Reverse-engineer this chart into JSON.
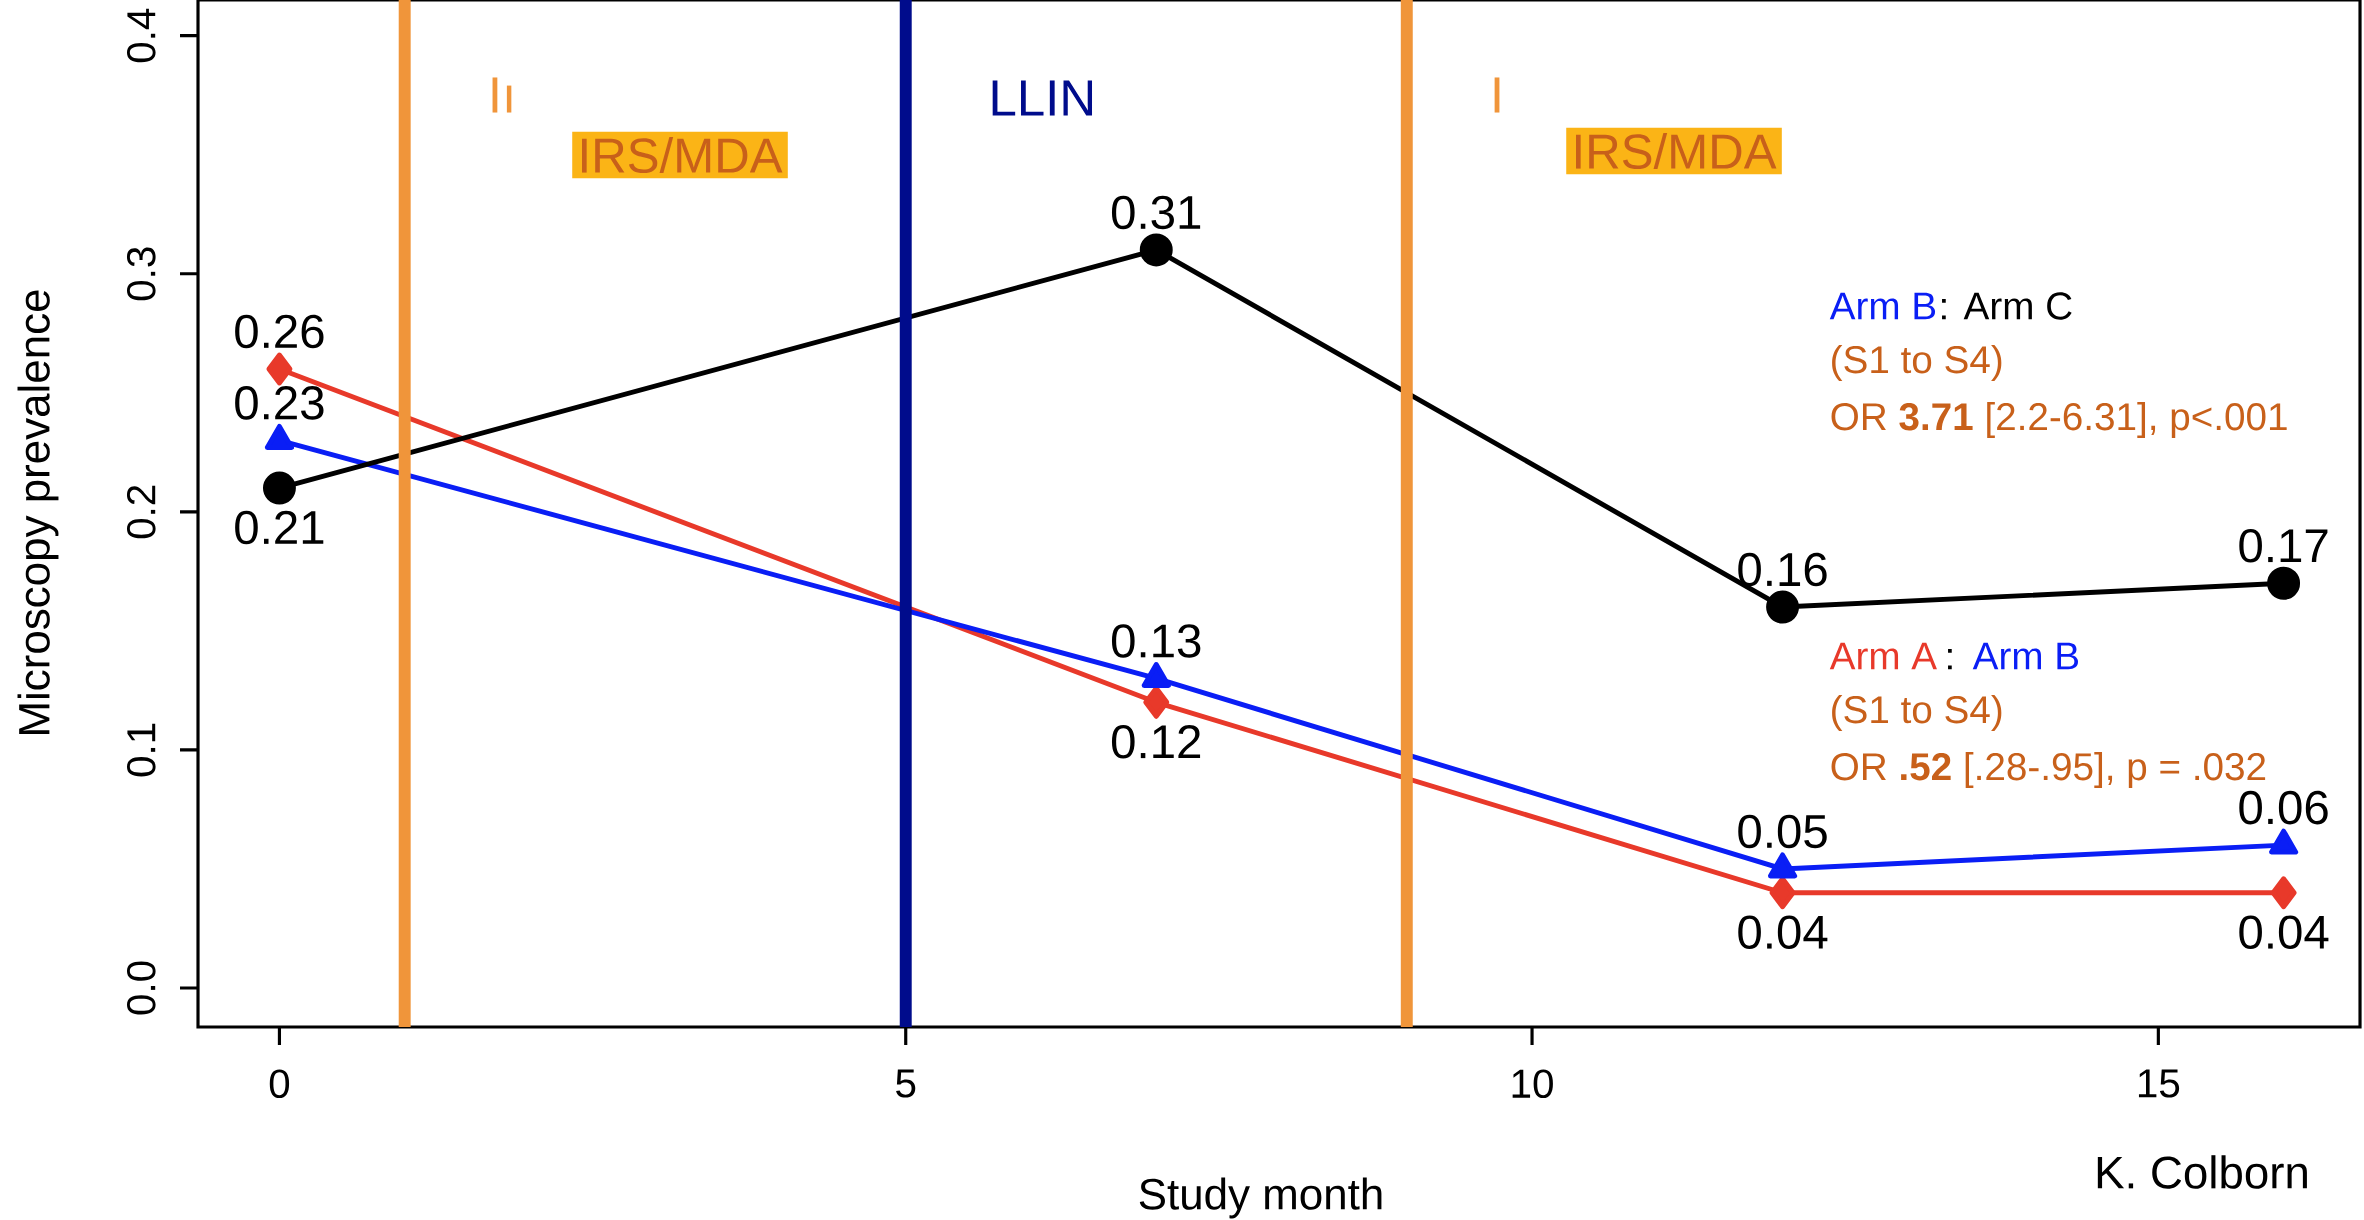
{
  "chart_data": {
    "type": "line",
    "xlabel": "Study month",
    "ylabel": "Microscopy prevalence",
    "x": [
      0,
      7,
      12,
      16
    ],
    "series": [
      {
        "color": "#e8392a",
        "marker": "diamond",
        "values": [
          0.26,
          0.12,
          0.04,
          0.04
        ]
      },
      {
        "color": "#0a1ef5",
        "marker": "triangle",
        "values": [
          0.23,
          0.13,
          0.05,
          0.06
        ]
      },
      {
        "color": "#000000",
        "marker": "circle",
        "values": [
          0.21,
          0.31,
          0.16,
          0.17
        ]
      }
    ],
    "xlim": [
      -0.65,
      16.61
    ],
    "ylim": [
      -0.0164,
      0.415
    ],
    "xticks": [
      0,
      5,
      10,
      15
    ],
    "yticks": [
      {
        "value": 0,
        "label": "0.0"
      },
      0.1,
      0.2,
      0.3,
      0.4
    ],
    "data_labels": true,
    "line_style": "solid",
    "ref_lines": [
      {
        "axis": "x",
        "value": 1,
        "color": "#f0953a"
      },
      {
        "axis": "x",
        "value": 5,
        "label": "LLIN",
        "color": "#000c8c"
      },
      {
        "axis": "x",
        "value": 9,
        "color": "#f0953a"
      }
    ],
    "annotations": [
      "Iı",
      "IRS/MDA",
      "I",
      "IRS/MDA",
      "Arm B",
      ": Arm C",
      "(S1 to S4)",
      "OR **3.71** [2.2-6.31], p<.001",
      "Arm A",
      ":",
      "Arm B",
      "(S1 to S4)",
      "OR **.52** [.28-.95], p = .032",
      "K. Colborn"
    ]
  }
}
